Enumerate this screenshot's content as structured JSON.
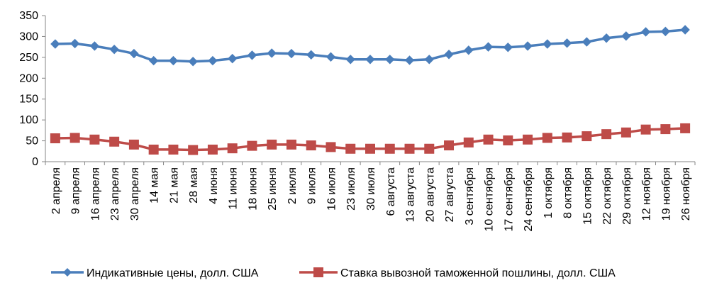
{
  "chart_data": {
    "type": "line",
    "categories": [
      "2 апреля",
      "9 апреля",
      "16 апреля",
      "23 апреля",
      "30 апреля",
      "14 мая",
      "21 мая",
      "28 мая",
      "4 июня",
      "11 июня",
      "18 июня",
      "25 июня",
      "2 июля",
      "9 июля",
      "16 июля",
      "23 июля",
      "30 июля",
      "6 августа",
      "13 августа",
      "20 августа",
      "27 августа",
      "3 сентября",
      "10 сентября",
      "17 сентября",
      "24 сентября",
      "1 октября",
      "8 октября",
      "15 октября",
      "22 октября",
      "29 октября",
      "12 ноября",
      "19 ноября",
      "26 ноября"
    ],
    "series": [
      {
        "name": "Индикативные цены, долл. США",
        "color": "#4a7ebb",
        "marker": "diamond",
        "values": [
          282,
          283,
          277,
          269,
          259,
          242,
          242,
          240,
          242,
          247,
          255,
          260,
          259,
          256,
          251,
          245,
          245,
          245,
          243,
          245,
          257,
          267,
          275,
          274,
          277,
          282,
          284,
          287,
          296,
          301,
          311,
          312,
          316
        ]
      },
      {
        "name": "Ставка вывозной таможенной пошлины, долл. США",
        "color": "#be4b48",
        "marker": "square",
        "values": [
          56,
          57,
          53,
          48,
          41,
          29,
          29,
          28,
          29,
          32,
          38,
          41,
          41,
          39,
          35,
          31,
          31,
          31,
          31,
          31,
          39,
          46,
          53,
          51,
          53,
          57,
          58,
          61,
          66,
          70,
          77,
          78,
          80
        ]
      }
    ],
    "y_ticks": [
      "0",
      "50",
      "100",
      "150",
      "200",
      "250",
      "300",
      "350"
    ],
    "ylim": [
      0,
      350
    ],
    "grid": false,
    "legend_position": "bottom"
  }
}
